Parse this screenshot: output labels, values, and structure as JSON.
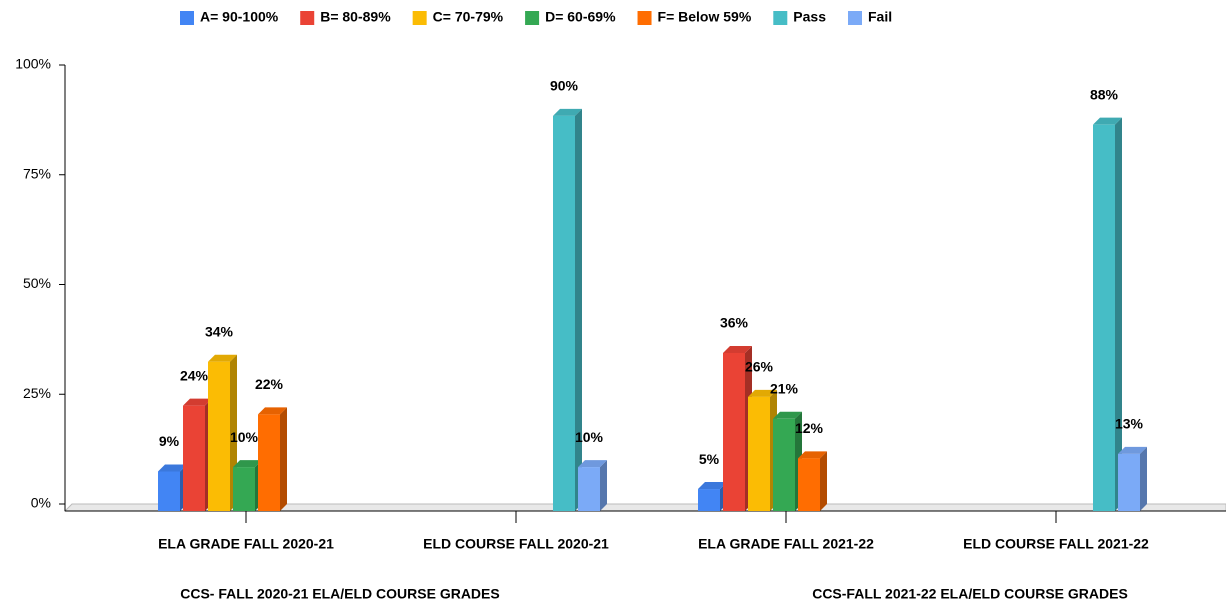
{
  "chart_data": {
    "type": "bar3d",
    "categories": [
      "ELA GRADE FALL 2020-21",
      "ELD COURSE FALL 2020-21",
      "ELA GRADE FALL 2021-22",
      "ELD COURSE FALL 2021-22"
    ],
    "group_labels": [
      "CCS- FALL 2020-21 ELA/ELD COURSE GRADES",
      "CCS-FALL 2021-22 ELA/ELD COURSE GRADES"
    ],
    "series": [
      {
        "name": "A= 90-100%",
        "color": "#4285f4",
        "values": [
          9,
          null,
          5,
          null
        ],
        "value_labels": [
          "9%",
          null,
          "5%",
          null
        ]
      },
      {
        "name": "B= 80-89%",
        "color": "#ea4335",
        "values": [
          24,
          null,
          36,
          null
        ],
        "value_labels": [
          "24%",
          null,
          "36%",
          null
        ]
      },
      {
        "name": "C= 70-79%",
        "color": "#fbbc04",
        "values": [
          34,
          null,
          26,
          null
        ],
        "value_labels": [
          "34%",
          null,
          "26%",
          null
        ]
      },
      {
        "name": "D= 60-69%",
        "color": "#34a853",
        "values": [
          10,
          null,
          21,
          null
        ],
        "value_labels": [
          "10%",
          null,
          "21%",
          null
        ]
      },
      {
        "name": "F= Below 59%",
        "color": "#ff6d01",
        "values": [
          22,
          null,
          12,
          null
        ],
        "value_labels": [
          "22%",
          null,
          "12%",
          null
        ]
      },
      {
        "name": "Pass",
        "color": "#46bdc6",
        "values": [
          null,
          90,
          null,
          88
        ],
        "value_labels": [
          null,
          "90%",
          null,
          "88%"
        ]
      },
      {
        "name": "Fail",
        "color": "#7baaf7",
        "values": [
          null,
          10,
          null,
          13
        ],
        "value_labels": [
          null,
          "10%",
          null,
          "13%"
        ]
      }
    ],
    "ylim": [
      0,
      100
    ],
    "yticks": [
      {
        "value": 0,
        "label": "0%"
      },
      {
        "value": 25,
        "label": "25%"
      },
      {
        "value": 50,
        "label": "50%"
      },
      {
        "value": 75,
        "label": "75%"
      },
      {
        "value": 100,
        "label": "100%"
      }
    ],
    "legend": "top"
  }
}
